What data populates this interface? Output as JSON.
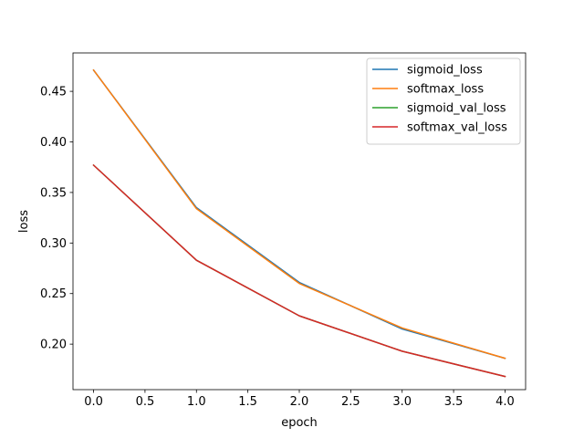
{
  "chart_data": {
    "type": "line",
    "title": "",
    "xlabel": "epoch",
    "ylabel": "loss",
    "xlim": [
      -0.2,
      4.2
    ],
    "ylim": [
      0.155,
      0.488
    ],
    "x_ticks": [
      0.0,
      0.5,
      1.0,
      1.5,
      2.0,
      2.5,
      3.0,
      3.5,
      4.0
    ],
    "x_tick_labels": [
      "0.0",
      "0.5",
      "1.0",
      "1.5",
      "2.0",
      "2.5",
      "3.0",
      "3.5",
      "4.0"
    ],
    "y_ticks": [
      0.2,
      0.25,
      0.3,
      0.35,
      0.4,
      0.45
    ],
    "y_tick_labels": [
      "0.20",
      "0.25",
      "0.30",
      "0.35",
      "0.40",
      "0.45"
    ],
    "grid": false,
    "legend_position": "top-right",
    "x": [
      0,
      1,
      2,
      3,
      4
    ],
    "series": [
      {
        "name": "sigmoid_loss",
        "color": "#1f77b4",
        "values": [
          0.471,
          0.335,
          0.261,
          0.215,
          0.186
        ]
      },
      {
        "name": "softmax_loss",
        "color": "#ff7f0e",
        "values": [
          0.471,
          0.334,
          0.26,
          0.216,
          0.186
        ]
      },
      {
        "name": "sigmoid_val_loss",
        "color": "#2ca02c",
        "values": [
          0.377,
          0.283,
          0.228,
          0.193,
          0.168
        ]
      },
      {
        "name": "softmax_val_loss",
        "color": "#d62728",
        "values": [
          0.377,
          0.283,
          0.228,
          0.193,
          0.168
        ]
      }
    ]
  }
}
